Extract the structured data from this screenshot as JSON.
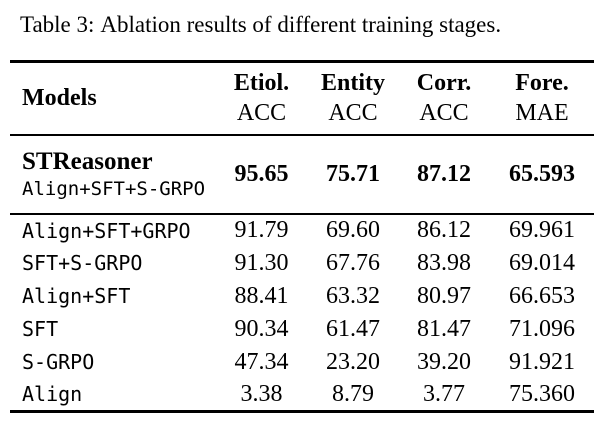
{
  "caption": {
    "label": "Table 3:",
    "text": "Ablation results of different training stages."
  },
  "table": {
    "model_header": "Models",
    "columns": [
      {
        "line1": "Etiol.",
        "line2": "ACC"
      },
      {
        "line1": "Entity",
        "line2": "ACC"
      },
      {
        "line1": "Corr.",
        "line2": "ACC"
      },
      {
        "line1": "Fore.",
        "line2": "MAE"
      }
    ],
    "highlight_row": {
      "name": "STReasoner",
      "subname": "Align+SFT+S-GRPO",
      "values": [
        "95.65",
        "75.71",
        "87.12",
        "65.593"
      ]
    },
    "rows": [
      {
        "name": "Align+SFT+GRPO",
        "values": [
          "91.79",
          "69.60",
          "86.12",
          "69.961"
        ]
      },
      {
        "name": "SFT+S-GRPO",
        "values": [
          "91.30",
          "67.76",
          "83.98",
          "69.014"
        ]
      },
      {
        "name": "Align+SFT",
        "values": [
          "88.41",
          "63.32",
          "80.97",
          "66.653"
        ]
      },
      {
        "name": "SFT",
        "values": [
          "90.34",
          "61.47",
          "81.47",
          "71.096"
        ]
      },
      {
        "name": "S-GRPO",
        "values": [
          "47.34",
          "23.20",
          "39.20",
          "91.921"
        ]
      },
      {
        "name": "Align",
        "values": [
          "3.38",
          "8.79",
          "3.77",
          "75.360"
        ]
      }
    ],
    "colors": {
      "text": "#000000",
      "background": "#ffffff",
      "rule": "#000000"
    }
  }
}
